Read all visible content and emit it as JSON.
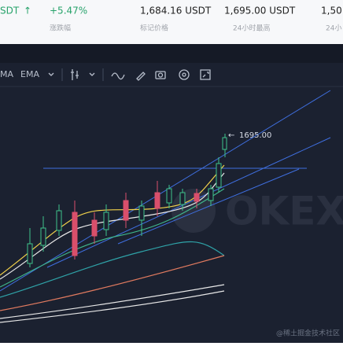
{
  "header": {
    "pair_tail": "SDT",
    "change": "+5.47%",
    "change_label": "涨跌幅",
    "mark_price": "1,684.16 USDT",
    "mark_price_label": "标记价格",
    "high_24h": "1,695.00 USDT",
    "high_24h_label": "24小时最高",
    "next_value": "1,50",
    "next_label": "24小"
  },
  "toolbar": {
    "items": [
      "MA",
      "EMA"
    ]
  },
  "chart": {
    "price_label": "1695.00",
    "watermark": "OKEX"
  },
  "footer": {
    "credit": "@稀土掘金技术社区"
  }
}
